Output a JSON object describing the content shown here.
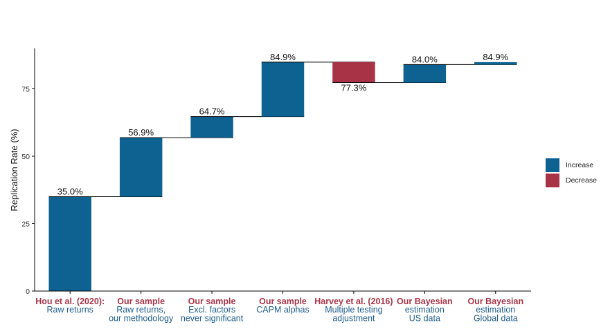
{
  "chart_data": {
    "type": "waterfall",
    "ylabel": "Replication Rate (%)",
    "ylim": [
      0,
      90
    ],
    "yticks": [
      0,
      25,
      50,
      75
    ],
    "grid": false,
    "legend_position": "right",
    "steps": [
      {
        "title": "Hou et al. (2020):",
        "subtitle": [
          "Raw returns"
        ],
        "start": 0,
        "end": 35.0,
        "label": "35.0%",
        "kind": "Increase"
      },
      {
        "title": "Our sample",
        "subtitle": [
          "Raw returns,",
          "our methodology"
        ],
        "start": 35.0,
        "end": 56.9,
        "label": "56.9%",
        "kind": "Increase"
      },
      {
        "title": "Our sample",
        "subtitle": [
          "Excl. factors",
          "never significant"
        ],
        "start": 56.9,
        "end": 64.7,
        "label": "64.7%",
        "kind": "Increase"
      },
      {
        "title": "Our sample",
        "subtitle": [
          "CAPM alphas"
        ],
        "start": 64.7,
        "end": 84.9,
        "label": "84.9%",
        "kind": "Increase"
      },
      {
        "title": "Harvey et al. (2016)",
        "subtitle": [
          "Multiple testing",
          "adjustment"
        ],
        "start": 84.9,
        "end": 77.3,
        "label": "77.3%",
        "kind": "Decrease"
      },
      {
        "title": "Our Bayesian",
        "subtitle": [
          "estimation",
          "US data"
        ],
        "start": 77.3,
        "end": 84.0,
        "label": "84.0%",
        "kind": "Increase"
      },
      {
        "title": "Our Bayesian",
        "subtitle": [
          "estimation",
          "Global data"
        ],
        "start": 84.0,
        "end": 84.9,
        "label": "84.9%",
        "kind": "Increase"
      }
    ],
    "legend": [
      {
        "label": "Increase",
        "color": "#0e6291"
      },
      {
        "label": "Decrease",
        "color": "#a93346"
      }
    ],
    "colors": {
      "title": "#a93346",
      "subtitle": "#1f5e8d",
      "increase": "#0e6291",
      "decrease": "#a93346"
    }
  }
}
